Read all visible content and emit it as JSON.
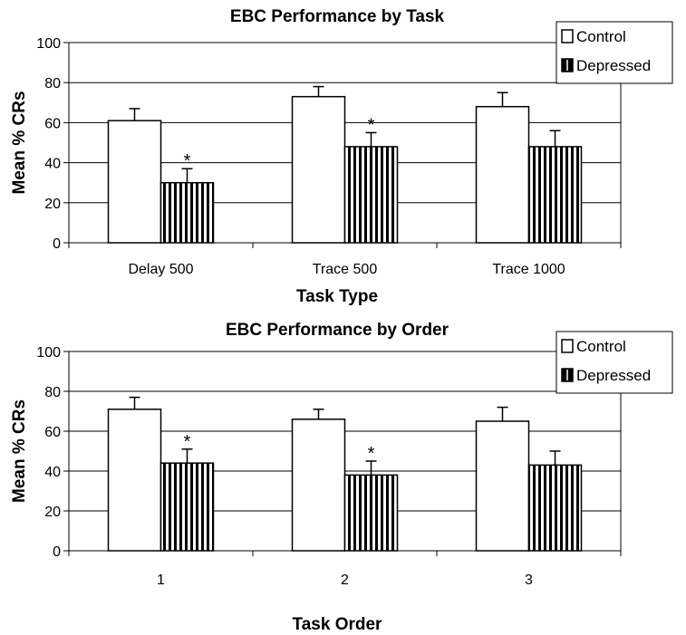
{
  "chart_data": [
    {
      "type": "bar",
      "title": "EBC Performance by Task",
      "xlabel": "Task Type",
      "ylabel": "Mean % CRs",
      "ylim": [
        0,
        100
      ],
      "yticks": [
        0,
        20,
        40,
        60,
        80,
        100
      ],
      "grid": true,
      "legend": "top-right",
      "categories": [
        "Delay 500",
        "Trace 500",
        "Trace 1000"
      ],
      "series": [
        {
          "name": "Control",
          "values": [
            61,
            73,
            68
          ],
          "errors": [
            6,
            5,
            7
          ],
          "fill": "#ffffff",
          "pattern": "none"
        },
        {
          "name": "Depressed",
          "values": [
            30,
            48,
            48
          ],
          "errors": [
            7,
            7,
            8
          ],
          "fill": "#ffffff",
          "pattern": "vertical-stripes"
        }
      ],
      "annotations": [
        {
          "series": 1,
          "category": 0,
          "text": "*"
        },
        {
          "series": 1,
          "category": 1,
          "text": "*"
        }
      ]
    },
    {
      "type": "bar",
      "title": "EBC Performance by Order",
      "xlabel": "Task Order",
      "ylabel": "Mean % CRs",
      "ylim": [
        0,
        100
      ],
      "yticks": [
        0,
        20,
        40,
        60,
        80,
        100
      ],
      "grid": true,
      "legend": "top-right",
      "categories": [
        "1",
        "2",
        "3"
      ],
      "series": [
        {
          "name": "Control",
          "values": [
            71,
            66,
            65
          ],
          "errors": [
            6,
            5,
            7
          ],
          "fill": "#ffffff",
          "pattern": "none"
        },
        {
          "name": "Depressed",
          "values": [
            44,
            38,
            43
          ],
          "errors": [
            7,
            7,
            7
          ],
          "fill": "#ffffff",
          "pattern": "vertical-stripes"
        }
      ],
      "annotations": [
        {
          "series": 1,
          "category": 0,
          "text": "*"
        },
        {
          "series": 1,
          "category": 1,
          "text": "*"
        }
      ]
    }
  ]
}
